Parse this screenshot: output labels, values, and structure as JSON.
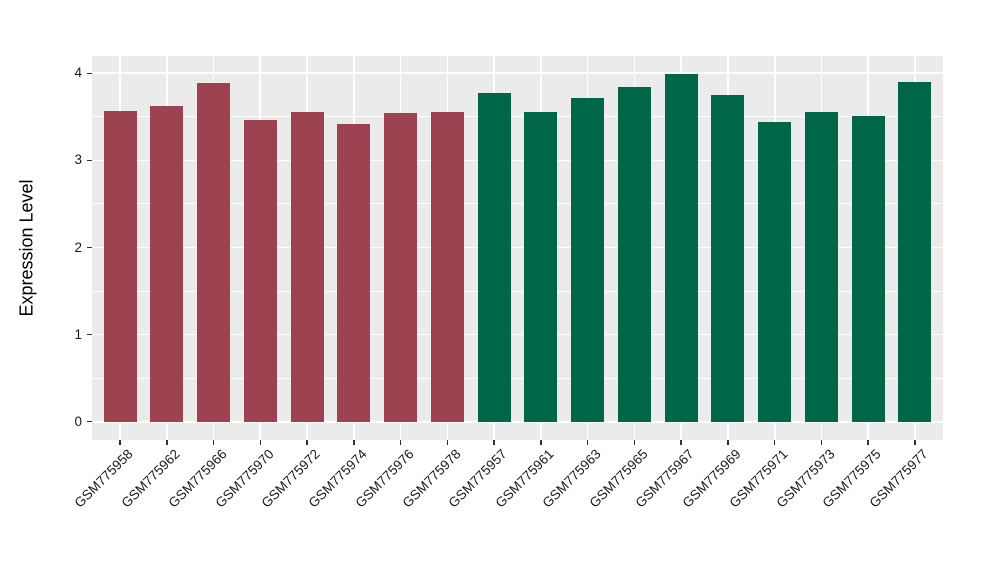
{
  "chart_data": {
    "type": "bar",
    "title": "",
    "xlabel": "",
    "ylabel": "Expression Level",
    "ylim": [
      0,
      4.2
    ],
    "yticks": [
      0,
      1,
      2,
      3,
      4
    ],
    "legend": "none",
    "grid": "white major+minor horizontal and major vertical gridlines on gray panel",
    "categories": [
      "GSM775958",
      "GSM775962",
      "GSM775966",
      "GSM775970",
      "GSM775972",
      "GSM775974",
      "GSM775976",
      "GSM775978",
      "GSM775957",
      "GSM775961",
      "GSM775963",
      "GSM775965",
      "GSM775967",
      "GSM775969",
      "GSM775971",
      "GSM775973",
      "GSM775975",
      "GSM775977"
    ],
    "values": [
      3.57,
      3.63,
      3.89,
      3.46,
      3.56,
      3.42,
      3.54,
      3.55,
      3.77,
      3.55,
      3.72,
      3.84,
      3.99,
      3.75,
      3.44,
      3.55,
      3.51,
      3.9
    ],
    "bar_colors": [
      "#9c4250",
      "#9c4250",
      "#9c4250",
      "#9c4250",
      "#9c4250",
      "#9c4250",
      "#9c4250",
      "#9c4250",
      "#00664a",
      "#00664a",
      "#00664a",
      "#00664a",
      "#00664a",
      "#00664a",
      "#00664a",
      "#00664a",
      "#00664a",
      "#00664a"
    ],
    "group_colors": {
      "left_group": "#9c4250",
      "right_group": "#00664a"
    }
  },
  "theme": {
    "panel_background": "#ebebeb",
    "grid_color": "#ffffff",
    "tick_color": "#333333",
    "text_color": "#1a1a1a",
    "figure_background": "#ffffff"
  }
}
